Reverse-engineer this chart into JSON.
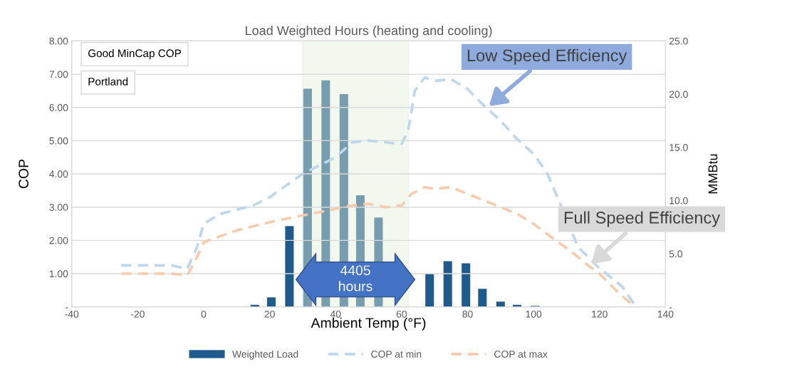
{
  "chart_data": {
    "type": "line",
    "title": "Load Weighted Hours (heating and cooling)",
    "xlabel": "Ambient Temp (°F)",
    "ylabel": "COP",
    "y2label": "MMBtu",
    "series": [
      {
        "name": "Weighted Load",
        "type": "bar",
        "axis": "y2",
        "color": "#1f5a8c",
        "x": [
          15.5,
          20.5,
          26,
          31.5,
          37,
          42.5,
          47.5,
          53,
          58.5,
          68.5,
          74,
          79.5,
          84.5,
          90,
          95,
          100.5
        ],
        "values": [
          0.2,
          0.9,
          7.6,
          20.5,
          21.3,
          20.0,
          10.5,
          8.4,
          null,
          3.1,
          4.3,
          4.1,
          1.7,
          0.5,
          0.2,
          0.1
        ]
      },
      {
        "name": "COP at min",
        "line_style": "dashed",
        "color": "#bdd7ee",
        "x": [
          -25,
          -10,
          -5,
          -2,
          0,
          5,
          15,
          20,
          30,
          40,
          45,
          50,
          55,
          60,
          62,
          64,
          67,
          70,
          75,
          80,
          85,
          90,
          95,
          100,
          104,
          108.5,
          113.5,
          119,
          127,
          130.5
        ],
        "values": [
          1.25,
          1.25,
          1.15,
          1.8,
          2.5,
          2.8,
          3.05,
          3.3,
          4.0,
          4.5,
          4.95,
          5.0,
          4.95,
          4.9,
          5.3,
          6.5,
          6.9,
          6.8,
          6.85,
          6.55,
          6.05,
          5.6,
          5.05,
          4.6,
          4.05,
          3.0,
          1.8,
          1.25,
          0.6,
          0.08
        ]
      },
      {
        "name": "COP at max",
        "line_style": "dashed",
        "color": "#f8cbad",
        "x": [
          -25,
          -10,
          -5,
          -2,
          0,
          10,
          20,
          30,
          40,
          45,
          50,
          55,
          60,
          63,
          67,
          70,
          75,
          80,
          85,
          90,
          95,
          100,
          106,
          111,
          116.5,
          120,
          125,
          130
        ],
        "values": [
          1.0,
          1.0,
          0.95,
          1.5,
          1.95,
          2.3,
          2.55,
          2.75,
          2.95,
          3.05,
          3.1,
          3.0,
          3.05,
          3.4,
          3.6,
          3.55,
          3.6,
          3.4,
          3.2,
          3.0,
          2.8,
          2.5,
          2.05,
          1.7,
          1.25,
          1.0,
          0.5,
          0.05
        ]
      }
    ],
    "xlim": [
      -40,
      140
    ],
    "xticks": [
      -40,
      -20,
      0,
      20,
      40,
      60,
      80,
      100,
      120,
      140
    ],
    "ylim": [
      0,
      8
    ],
    "yticks": [
      {
        "value": 0,
        "label": "-"
      },
      {
        "value": 1,
        "label": "1.00"
      },
      {
        "value": 2,
        "label": "2.00"
      },
      {
        "value": 3,
        "label": "3.00"
      },
      {
        "value": 4,
        "label": "4.00"
      },
      {
        "value": 5,
        "label": "5.00"
      },
      {
        "value": 6,
        "label": "6.00"
      },
      {
        "value": 7,
        "label": "7.00"
      },
      {
        "value": 8,
        "label": "8.00"
      }
    ],
    "y2lim": [
      0,
      25
    ],
    "y2ticks": [
      {
        "value": 0,
        "label": "-"
      },
      {
        "value": 5,
        "label": "5.0"
      },
      {
        "value": 10,
        "label": "10.0"
      },
      {
        "value": 15,
        "label": "15.0"
      },
      {
        "value": 20,
        "label": "20.0"
      },
      {
        "value": 25,
        "label": "25.0"
      }
    ],
    "bands": [
      {
        "axis": "x",
        "from": 30,
        "to": 62,
        "label": "4405 hours",
        "color": "#e2efda"
      }
    ],
    "annotations": [
      "Good MinCap COP",
      "Portland",
      {
        "text": "Low Speed Efficiency",
        "x": 86,
        "y": 6.0
      },
      {
        "text": "Full Speed Efficiency",
        "x": 117,
        "y": 1.25
      }
    ],
    "grid": "y",
    "legend": "bottom"
  }
}
